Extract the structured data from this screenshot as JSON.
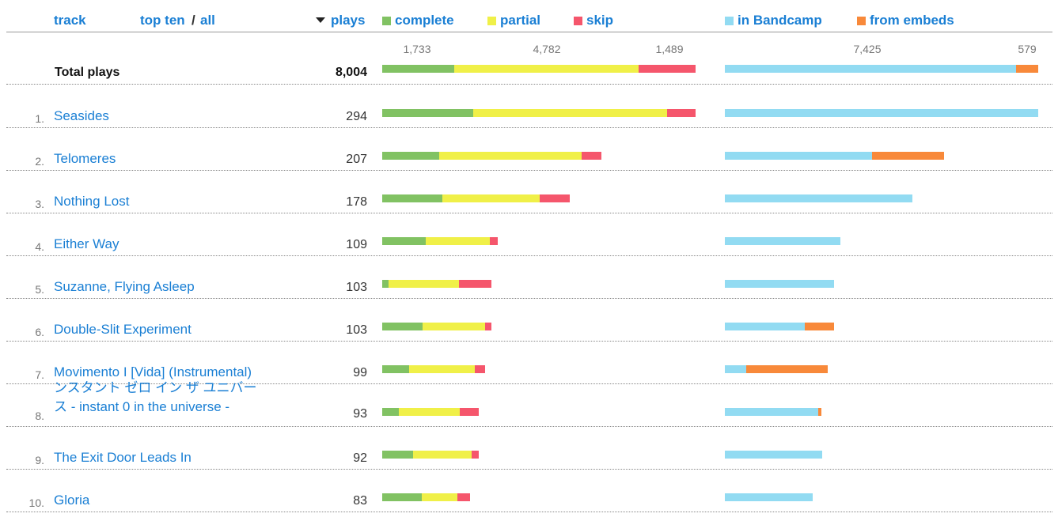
{
  "colors": {
    "complete": "#81c263",
    "partial": "#f0f048",
    "skip": "#f5566c",
    "bandcamp": "#92dbf2",
    "embeds": "#f8893a",
    "link": "#1a7fd4"
  },
  "header": {
    "track_label": "track",
    "top_ten_label": "top ten",
    "separator": "/",
    "all_label": "all",
    "plays_label": "plays",
    "complete_label": "complete",
    "partial_label": "partial",
    "skip_label": "skip",
    "bandcamp_label": "in Bandcamp",
    "embeds_label": "from embeds"
  },
  "totals": {
    "label": "Total plays",
    "plays": "8,004",
    "complete": "1,733",
    "partial": "4,782",
    "skip": "1,489",
    "bandcamp": "7,425",
    "embeds": "579"
  },
  "tracks": [
    {
      "rank": "1.",
      "title": "Seasides",
      "plays": "294",
      "complete": 0.29,
      "partial": 0.62,
      "skip": 0.09,
      "bandcamp": 1.0,
      "embeds": 0.0
    },
    {
      "rank": "2.",
      "title": "Telomeres",
      "plays": "207",
      "complete": 0.26,
      "partial": 0.65,
      "skip": 0.09,
      "bandcamp": 0.67,
      "embeds": 0.33
    },
    {
      "rank": "3.",
      "title": "Nothing Lost",
      "plays": "178",
      "complete": 0.32,
      "partial": 0.52,
      "skip": 0.16,
      "bandcamp": 1.0,
      "embeds": 0.0
    },
    {
      "rank": "4.",
      "title": "Either Way",
      "plays": "109",
      "complete": 0.38,
      "partial": 0.55,
      "skip": 0.07,
      "bandcamp": 1.0,
      "embeds": 0.0
    },
    {
      "rank": "5.",
      "title": "Suzanne, Flying Asleep",
      "plays": "103",
      "complete": 0.06,
      "partial": 0.64,
      "skip": 0.3,
      "bandcamp": 1.0,
      "embeds": 0.0
    },
    {
      "rank": "6.",
      "title": "Double-Slit Experiment",
      "plays": "103",
      "complete": 0.37,
      "partial": 0.57,
      "skip": 0.06,
      "bandcamp": 0.73,
      "embeds": 0.27
    },
    {
      "rank": "7.",
      "title": "Movimento I [Vida] (Instrumental)",
      "plays": "99",
      "complete": 0.26,
      "partial": 0.64,
      "skip": 0.1,
      "bandcamp": 0.21,
      "embeds": 0.79
    },
    {
      "rank": "8.",
      "title": "ンスタント ゼロ イン ザ ユニバース - instant 0 in the universe -",
      "plays": "93",
      "complete": 0.17,
      "partial": 0.63,
      "skip": 0.2,
      "bandcamp": 0.97,
      "embeds": 0.03
    },
    {
      "rank": "9.",
      "title": "The Exit Door Leads In",
      "plays": "92",
      "complete": 0.32,
      "partial": 0.61,
      "skip": 0.07,
      "bandcamp": 1.0,
      "embeds": 0.0
    },
    {
      "rank": "10.",
      "title": "Gloria",
      "plays": "83",
      "complete": 0.45,
      "partial": 0.41,
      "skip": 0.14,
      "bandcamp": 1.0,
      "embeds": 0.0
    }
  ]
}
